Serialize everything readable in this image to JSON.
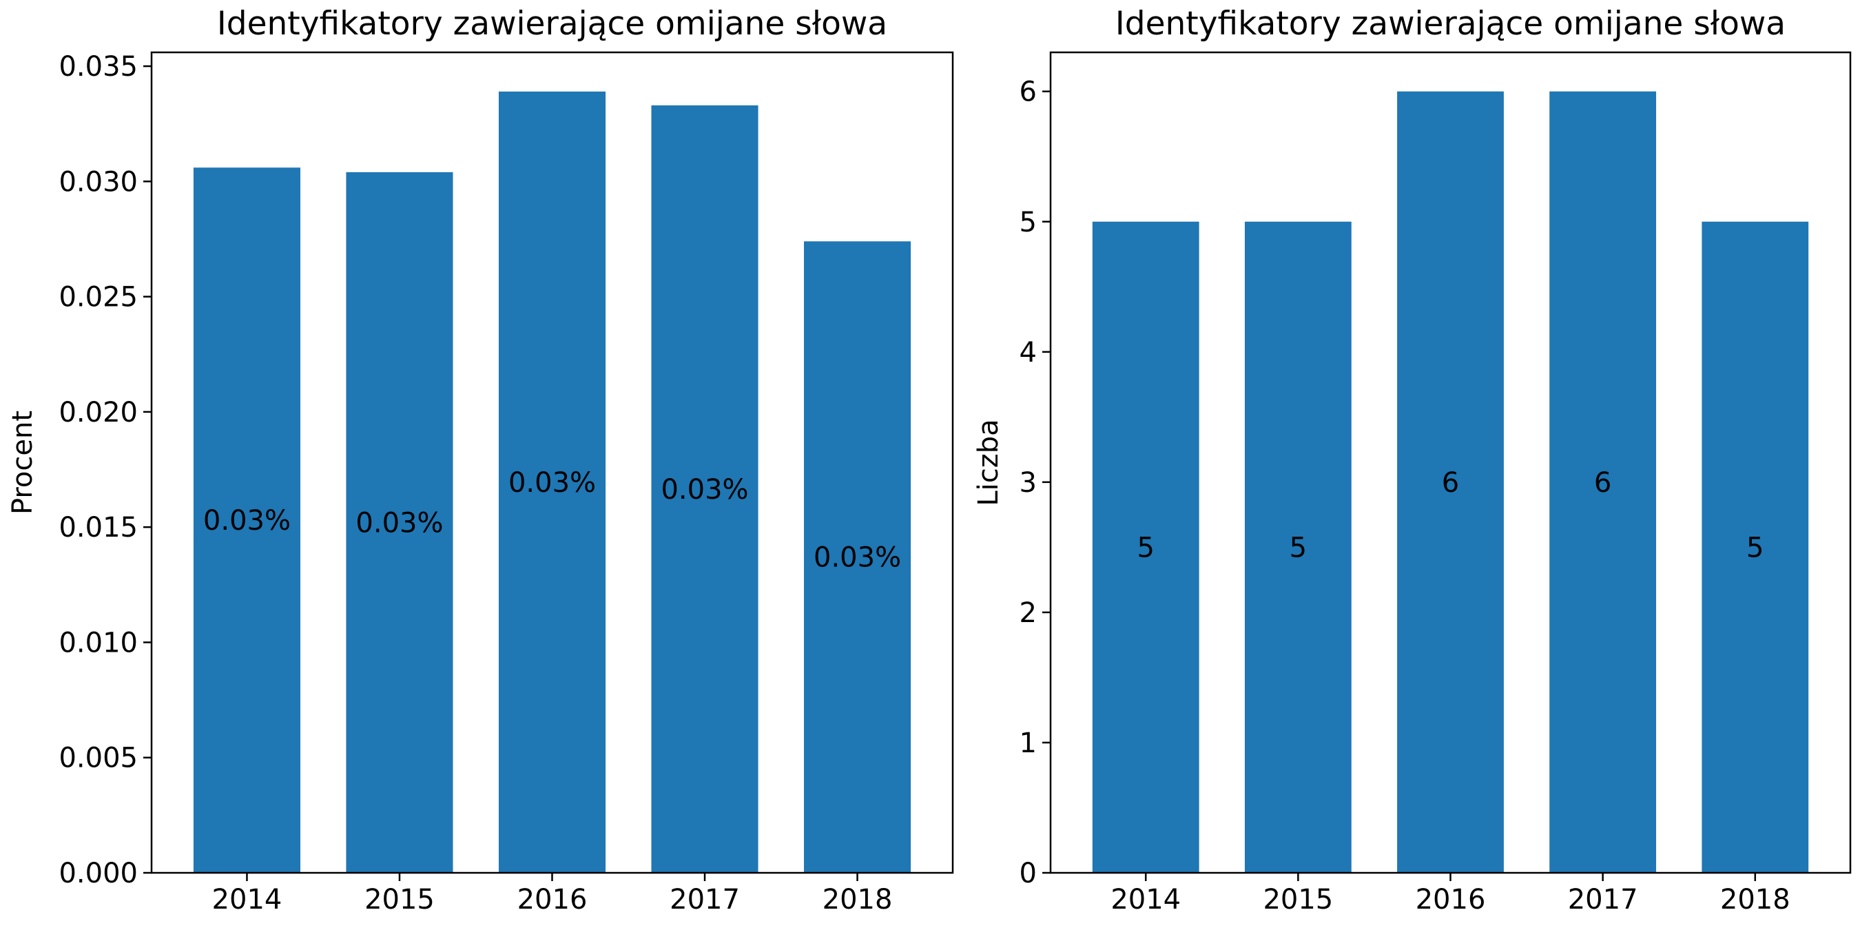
{
  "chart_data": [
    {
      "type": "bar",
      "title": "Identyfikatory zawierające omijane słowa",
      "xlabel": "",
      "ylabel": "Procent",
      "categories": [
        "2014",
        "2015",
        "2016",
        "2017",
        "2018"
      ],
      "values": [
        0.0306,
        0.0304,
        0.0339,
        0.0333,
        0.0274
      ],
      "bar_labels": [
        "0.03%",
        "0.03%",
        "0.03%",
        "0.03%",
        "0.03%"
      ],
      "ylim": [
        0,
        0.0356
      ],
      "yticks": [
        0.0,
        0.005,
        0.01,
        0.015,
        0.02,
        0.025,
        0.03,
        0.035
      ],
      "ytick_labels": [
        "0.000",
        "0.005",
        "0.010",
        "0.015",
        "0.020",
        "0.025",
        "0.030",
        "0.035"
      ],
      "grid": false,
      "color": "#1f77b4"
    },
    {
      "type": "bar",
      "title": "Identyfikatory zawierające omijane słowa",
      "xlabel": "",
      "ylabel": "Liczba",
      "categories": [
        "2014",
        "2015",
        "2016",
        "2017",
        "2018"
      ],
      "values": [
        5,
        5,
        6,
        6,
        5
      ],
      "bar_labels": [
        "5",
        "5",
        "6",
        "6",
        "5"
      ],
      "ylim": [
        0,
        6.3
      ],
      "yticks": [
        0,
        1,
        2,
        3,
        4,
        5,
        6
      ],
      "ytick_labels": [
        "0",
        "1",
        "2",
        "3",
        "4",
        "5",
        "6"
      ],
      "grid": false,
      "color": "#1f77b4"
    }
  ]
}
